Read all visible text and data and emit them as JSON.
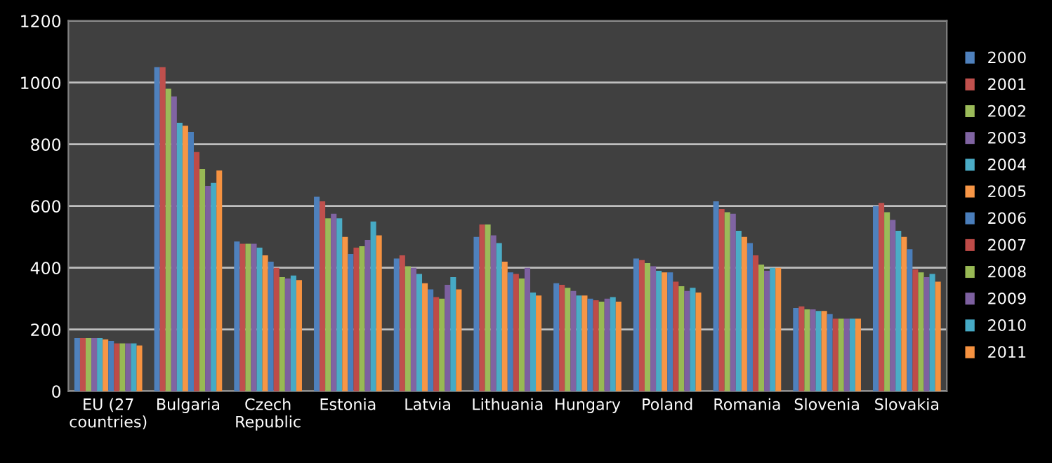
{
  "chart_data": {
    "type": "bar",
    "categories": [
      "EU (27\ncountries)",
      "Bulgaria",
      "Czech\nRepublic",
      "Estonia",
      "Latvia",
      "Lithuania",
      "Hungary",
      "Poland",
      "Romania",
      "Slovenia",
      "Slovakia"
    ],
    "ylim": [
      0,
      1200
    ],
    "yticks": [
      0,
      200,
      400,
      600,
      800,
      1000,
      1200
    ],
    "grid": "y",
    "legend": "right",
    "series": [
      {
        "name": "2000",
        "color": "#4f81bd",
        "values": [
          172,
          1050,
          485,
          630,
          430,
          500,
          350,
          430,
          615,
          270,
          600
        ]
      },
      {
        "name": "2001",
        "color": "#c0504d",
        "values": [
          172,
          1050,
          478,
          615,
          440,
          540,
          345,
          425,
          590,
          275,
          610
        ]
      },
      {
        "name": "2002",
        "color": "#9bbb59",
        "values": [
          172,
          980,
          478,
          560,
          405,
          540,
          335,
          415,
          580,
          265,
          580
        ]
      },
      {
        "name": "2003",
        "color": "#8064a2",
        "values": [
          172,
          955,
          478,
          575,
          400,
          505,
          325,
          405,
          575,
          265,
          555
        ]
      },
      {
        "name": "2004",
        "color": "#4bacc6",
        "values": [
          172,
          870,
          465,
          560,
          380,
          480,
          310,
          390,
          520,
          260,
          520
        ]
      },
      {
        "name": "2005",
        "color": "#f79646",
        "values": [
          168,
          860,
          440,
          500,
          350,
          420,
          310,
          385,
          500,
          260,
          500
        ]
      },
      {
        "name": "2006",
        "color": "#4a7ebb",
        "values": [
          163,
          840,
          420,
          445,
          330,
          385,
          300,
          385,
          480,
          250,
          460
        ]
      },
      {
        "name": "2007",
        "color": "#be4b48",
        "values": [
          155,
          775,
          400,
          465,
          305,
          380,
          295,
          355,
          440,
          235,
          395
        ]
      },
      {
        "name": "2008",
        "color": "#98b954",
        "values": [
          155,
          720,
          370,
          470,
          300,
          365,
          290,
          340,
          410,
          235,
          385
        ]
      },
      {
        "name": "2009",
        "color": "#7d60a0",
        "values": [
          155,
          665,
          365,
          490,
          345,
          400,
          300,
          325,
          390,
          235,
          370
        ]
      },
      {
        "name": "2010",
        "color": "#46aac5",
        "values": [
          155,
          675,
          375,
          550,
          370,
          320,
          305,
          335,
          400,
          235,
          380
        ]
      },
      {
        "name": "2011",
        "color": "#f69240",
        "values": [
          148,
          715,
          360,
          505,
          330,
          310,
          290,
          320,
          400,
          235,
          355
        ]
      }
    ]
  }
}
